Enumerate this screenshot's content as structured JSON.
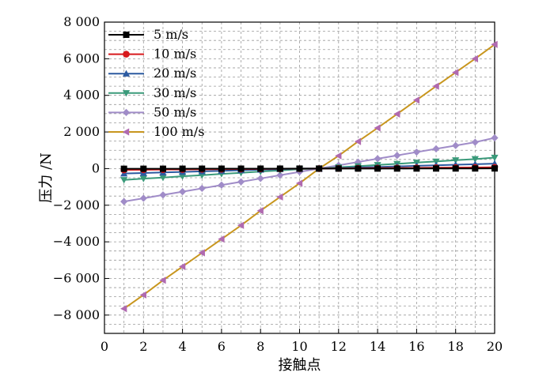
{
  "chart_data": {
    "type": "line",
    "xlabel": "接触点",
    "ylabel": "压力 /N",
    "xlim": [
      0,
      20
    ],
    "ylim": [
      -9000,
      8000
    ],
    "xticks": [
      0,
      2,
      4,
      6,
      8,
      10,
      12,
      14,
      16,
      18,
      20
    ],
    "yticks": [
      -8000,
      -6000,
      -4000,
      -2000,
      0,
      2000,
      4000,
      6000,
      8000
    ],
    "xtick_labels": [
      "0",
      "2",
      "4",
      "6",
      "8",
      "10",
      "12",
      "14",
      "16",
      "18",
      "20"
    ],
    "ytick_labels": [
      "−8 000",
      "−6 000",
      "−4 000",
      "−2 000",
      "0",
      "2 000",
      "4 000",
      "6 000",
      "8 000"
    ],
    "grid": true,
    "legend_position": "top-left",
    "x": [
      1,
      2,
      3,
      4,
      5,
      6,
      7,
      8,
      9,
      10,
      11,
      12,
      13,
      14,
      15,
      16,
      17,
      18,
      19,
      20
    ],
    "series": [
      {
        "name": "5 m/s",
        "color": "#000000",
        "marker": "square",
        "values": [
          -10,
          -9,
          -8,
          -7,
          -6,
          -5,
          -4,
          -3,
          -2,
          -1,
          0,
          1,
          2,
          3,
          4,
          5,
          6,
          7,
          8,
          10
        ]
      },
      {
        "name": "10 m/s",
        "color": "#d7191c",
        "marker": "circle",
        "values": [
          -70,
          -62,
          -55,
          -48,
          -40,
          -33,
          -26,
          -18,
          -11,
          -4,
          0,
          11,
          18,
          26,
          33,
          40,
          48,
          55,
          62,
          70
        ]
      },
      {
        "name": "20 m/s",
        "color": "#2c5aa0",
        "marker": "triangle-up",
        "values": [
          -270,
          -240,
          -210,
          -180,
          -150,
          -120,
          -90,
          -60,
          -30,
          0,
          0,
          30,
          60,
          90,
          120,
          150,
          180,
          210,
          240,
          270
        ]
      },
      {
        "name": "30 m/s",
        "color": "#3a9a7a",
        "marker": "triangle-down",
        "values": [
          -620,
          -550,
          -490,
          -420,
          -360,
          -290,
          -230,
          -160,
          -100,
          -30,
          0,
          70,
          130,
          200,
          260,
          330,
          390,
          460,
          520,
          600
        ]
      },
      {
        "name": "50 m/s",
        "color": "#a08cc8",
        "marker": "diamond",
        "values": [
          -1800,
          -1620,
          -1440,
          -1260,
          -1080,
          -900,
          -720,
          -540,
          -360,
          -180,
          0,
          180,
          360,
          540,
          720,
          900,
          1080,
          1260,
          1440,
          1680
        ]
      },
      {
        "name": "100 m/s",
        "color": "#c8961e",
        "marker": "triangle-left",
        "marker_color": "#b06ab0",
        "values": [
          -7650,
          -6900,
          -6100,
          -5350,
          -4600,
          -3850,
          -3100,
          -2300,
          -1550,
          -800,
          0,
          700,
          1480,
          2220,
          2980,
          3740,
          4500,
          5250,
          6000,
          6780
        ]
      }
    ]
  }
}
